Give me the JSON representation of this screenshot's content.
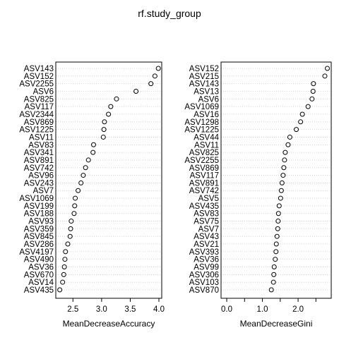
{
  "title": "rf.study_group",
  "chart_data": [
    {
      "type": "dotchart",
      "xlabel": "MeanDecreaseAccuracy",
      "xticks": [
        "2.5",
        "3.0",
        "3.5",
        "4.0"
      ],
      "xlim": [
        2.25,
        4.0
      ],
      "grid": "dotted horizontal lines per row",
      "points": [
        {
          "label": "ASV143",
          "value": 3.99
        },
        {
          "label": "ASV152",
          "value": 3.93
        },
        {
          "label": "ASV2255",
          "value": 3.86
        },
        {
          "label": "ASV6",
          "value": 3.6
        },
        {
          "label": "ASV825",
          "value": 3.26
        },
        {
          "label": "ASV117",
          "value": 3.16
        },
        {
          "label": "ASV2344",
          "value": 3.12
        },
        {
          "label": "ASV869",
          "value": 3.05
        },
        {
          "label": "ASV1225",
          "value": 3.04
        },
        {
          "label": "ASV11",
          "value": 3.03
        },
        {
          "label": "ASV83",
          "value": 2.86
        },
        {
          "label": "ASV341",
          "value": 2.85
        },
        {
          "label": "ASV891",
          "value": 2.77
        },
        {
          "label": "ASV742",
          "value": 2.72
        },
        {
          "label": "ASV96",
          "value": 2.68
        },
        {
          "label": "ASV243",
          "value": 2.64
        },
        {
          "label": "ASV7",
          "value": 2.59
        },
        {
          "label": "ASV1069",
          "value": 2.54
        },
        {
          "label": "ASV199",
          "value": 2.53
        },
        {
          "label": "ASV188",
          "value": 2.52
        },
        {
          "label": "ASV93",
          "value": 2.47
        },
        {
          "label": "ASV359",
          "value": 2.46
        },
        {
          "label": "ASV845",
          "value": 2.45
        },
        {
          "label": "ASV286",
          "value": 2.41
        },
        {
          "label": "ASV4197",
          "value": 2.37
        },
        {
          "label": "ASV490",
          "value": 2.36
        },
        {
          "label": "ASV36",
          "value": 2.35
        },
        {
          "label": "ASV670",
          "value": 2.34
        },
        {
          "label": "ASV14",
          "value": 2.32
        },
        {
          "label": "ASV435",
          "value": 2.27
        }
      ]
    },
    {
      "type": "dotchart",
      "xlabel": "MeanDecreaseGini",
      "xticks": [
        "0.0",
        "1.0",
        "2.0"
      ],
      "xtick_values": [
        0.0,
        1.0,
        2.0
      ],
      "minor_ticks": [
        0.5,
        1.5,
        2.5
      ],
      "xlim": [
        -0.08,
        2.85
      ],
      "grid": "dotted horizontal lines per row",
      "points": [
        {
          "label": "ASV152",
          "value": 2.82
        },
        {
          "label": "ASV215",
          "value": 2.75
        },
        {
          "label": "ASV143",
          "value": 2.43
        },
        {
          "label": "ASV13",
          "value": 2.42
        },
        {
          "label": "ASV6",
          "value": 2.39
        },
        {
          "label": "ASV1069",
          "value": 2.28
        },
        {
          "label": "ASV16",
          "value": 2.12
        },
        {
          "label": "ASV1298",
          "value": 2.07
        },
        {
          "label": "ASV1225",
          "value": 1.95
        },
        {
          "label": "ASV44",
          "value": 1.77
        },
        {
          "label": "ASV11",
          "value": 1.72
        },
        {
          "label": "ASV825",
          "value": 1.64
        },
        {
          "label": "ASV2255",
          "value": 1.62
        },
        {
          "label": "ASV869",
          "value": 1.6
        },
        {
          "label": "ASV117",
          "value": 1.58
        },
        {
          "label": "ASV891",
          "value": 1.55
        },
        {
          "label": "ASV742",
          "value": 1.53
        },
        {
          "label": "ASV5",
          "value": 1.51
        },
        {
          "label": "ASV435",
          "value": 1.47
        },
        {
          "label": "ASV83",
          "value": 1.45
        },
        {
          "label": "ASV75",
          "value": 1.44
        },
        {
          "label": "ASV7",
          "value": 1.43
        },
        {
          "label": "ASV43",
          "value": 1.41
        },
        {
          "label": "ASV21",
          "value": 1.39
        },
        {
          "label": "ASV393",
          "value": 1.38
        },
        {
          "label": "ASV36",
          "value": 1.36
        },
        {
          "label": "ASV99",
          "value": 1.33
        },
        {
          "label": "ASV306",
          "value": 1.32
        },
        {
          "label": "ASV103",
          "value": 1.31
        },
        {
          "label": "ASV870",
          "value": 1.25
        }
      ]
    }
  ]
}
